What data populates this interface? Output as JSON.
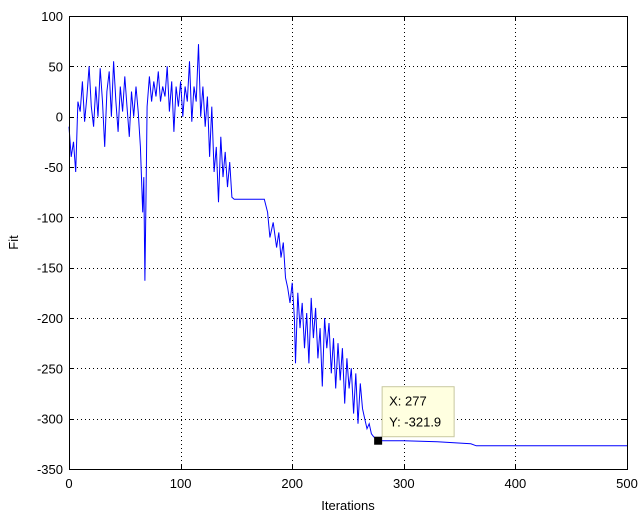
{
  "chart_data": {
    "type": "line",
    "xlabel": "Iterations",
    "ylabel": "Fit",
    "xlim": [
      0,
      500
    ],
    "ylim": [
      -350,
      100
    ],
    "xticks": [
      0,
      100,
      200,
      300,
      400,
      500
    ],
    "yticks": [
      -350,
      -300,
      -250,
      -200,
      -150,
      -100,
      -50,
      0,
      50,
      100
    ],
    "grid": true,
    "line_color": "#0000ff",
    "series": [
      {
        "values": [
          [
            0,
            -10
          ],
          [
            2,
            -40
          ],
          [
            4,
            -25
          ],
          [
            6,
            -55
          ],
          [
            8,
            15
          ],
          [
            10,
            5
          ],
          [
            12,
            35
          ],
          [
            14,
            -5
          ],
          [
            16,
            20
          ],
          [
            18,
            50
          ],
          [
            20,
            10
          ],
          [
            22,
            -10
          ],
          [
            24,
            30
          ],
          [
            26,
            0
          ],
          [
            28,
            48
          ],
          [
            30,
            15
          ],
          [
            32,
            -30
          ],
          [
            34,
            25
          ],
          [
            36,
            45
          ],
          [
            38,
            0
          ],
          [
            40,
            55
          ],
          [
            42,
            15
          ],
          [
            44,
            -15
          ],
          [
            46,
            30
          ],
          [
            48,
            5
          ],
          [
            50,
            40
          ],
          [
            52,
            10
          ],
          [
            54,
            -20
          ],
          [
            56,
            25
          ],
          [
            58,
            0
          ],
          [
            60,
            30
          ],
          [
            62,
            5
          ],
          [
            64,
            -30
          ],
          [
            66,
            -95
          ],
          [
            67,
            -60
          ],
          [
            68,
            -163
          ],
          [
            69,
            -80
          ],
          [
            70,
            10
          ],
          [
            72,
            40
          ],
          [
            74,
            15
          ],
          [
            76,
            35
          ],
          [
            78,
            20
          ],
          [
            80,
            45
          ],
          [
            82,
            15
          ],
          [
            84,
            30
          ],
          [
            86,
            20
          ],
          [
            88,
            50
          ],
          [
            90,
            5
          ],
          [
            92,
            35
          ],
          [
            94,
            -15
          ],
          [
            96,
            30
          ],
          [
            98,
            10
          ],
          [
            100,
            35
          ],
          [
            102,
            0
          ],
          [
            104,
            30
          ],
          [
            106,
            15
          ],
          [
            108,
            55
          ],
          [
            110,
            -5
          ],
          [
            112,
            30
          ],
          [
            114,
            15
          ],
          [
            116,
            72
          ],
          [
            118,
            0
          ],
          [
            120,
            30
          ],
          [
            122,
            -10
          ],
          [
            124,
            20
          ],
          [
            126,
            -40
          ],
          [
            128,
            10
          ],
          [
            130,
            -55
          ],
          [
            132,
            -30
          ],
          [
            134,
            -85
          ],
          [
            136,
            -20
          ],
          [
            138,
            -60
          ],
          [
            140,
            -35
          ],
          [
            142,
            -70
          ],
          [
            144,
            -45
          ],
          [
            146,
            -80
          ],
          [
            148,
            -82
          ],
          [
            160,
            -82
          ],
          [
            175,
            -82
          ],
          [
            178,
            -95
          ],
          [
            180,
            -120
          ],
          [
            183,
            -105
          ],
          [
            186,
            -130
          ],
          [
            188,
            -115
          ],
          [
            190,
            -140
          ],
          [
            192,
            -125
          ],
          [
            194,
            -160
          ],
          [
            196,
            -170
          ],
          [
            198,
            -185
          ],
          [
            200,
            -165
          ],
          [
            202,
            -200
          ],
          [
            203,
            -245
          ],
          [
            205,
            -175
          ],
          [
            207,
            -210
          ],
          [
            209,
            -185
          ],
          [
            211,
            -230
          ],
          [
            213,
            -195
          ],
          [
            215,
            -245
          ],
          [
            217,
            -180
          ],
          [
            219,
            -220
          ],
          [
            221,
            -190
          ],
          [
            223,
            -240
          ],
          [
            225,
            -210
          ],
          [
            227,
            -268
          ],
          [
            229,
            -200
          ],
          [
            231,
            -230
          ],
          [
            233,
            -205
          ],
          [
            235,
            -255
          ],
          [
            237,
            -220
          ],
          [
            239,
            -270
          ],
          [
            241,
            -225
          ],
          [
            243,
            -262
          ],
          [
            245,
            -230
          ],
          [
            247,
            -285
          ],
          [
            249,
            -240
          ],
          [
            251,
            -270
          ],
          [
            253,
            -250
          ],
          [
            255,
            -295
          ],
          [
            257,
            -255
          ],
          [
            259,
            -305
          ],
          [
            261,
            -265
          ],
          [
            263,
            -290
          ],
          [
            265,
            -300
          ],
          [
            267,
            -310
          ],
          [
            269,
            -305
          ],
          [
            271,
            -315
          ],
          [
            273,
            -318
          ],
          [
            275,
            -320
          ],
          [
            277,
            -321.9
          ],
          [
            300,
            -322
          ],
          [
            330,
            -323
          ],
          [
            360,
            -325
          ],
          [
            365,
            -327
          ],
          [
            400,
            -327
          ],
          [
            450,
            -327
          ],
          [
            500,
            -327
          ]
        ]
      }
    ],
    "datatip": {
      "x_label": "X: 277",
      "y_label": "Y: -321.9",
      "x": 277,
      "y": -321.9
    }
  }
}
